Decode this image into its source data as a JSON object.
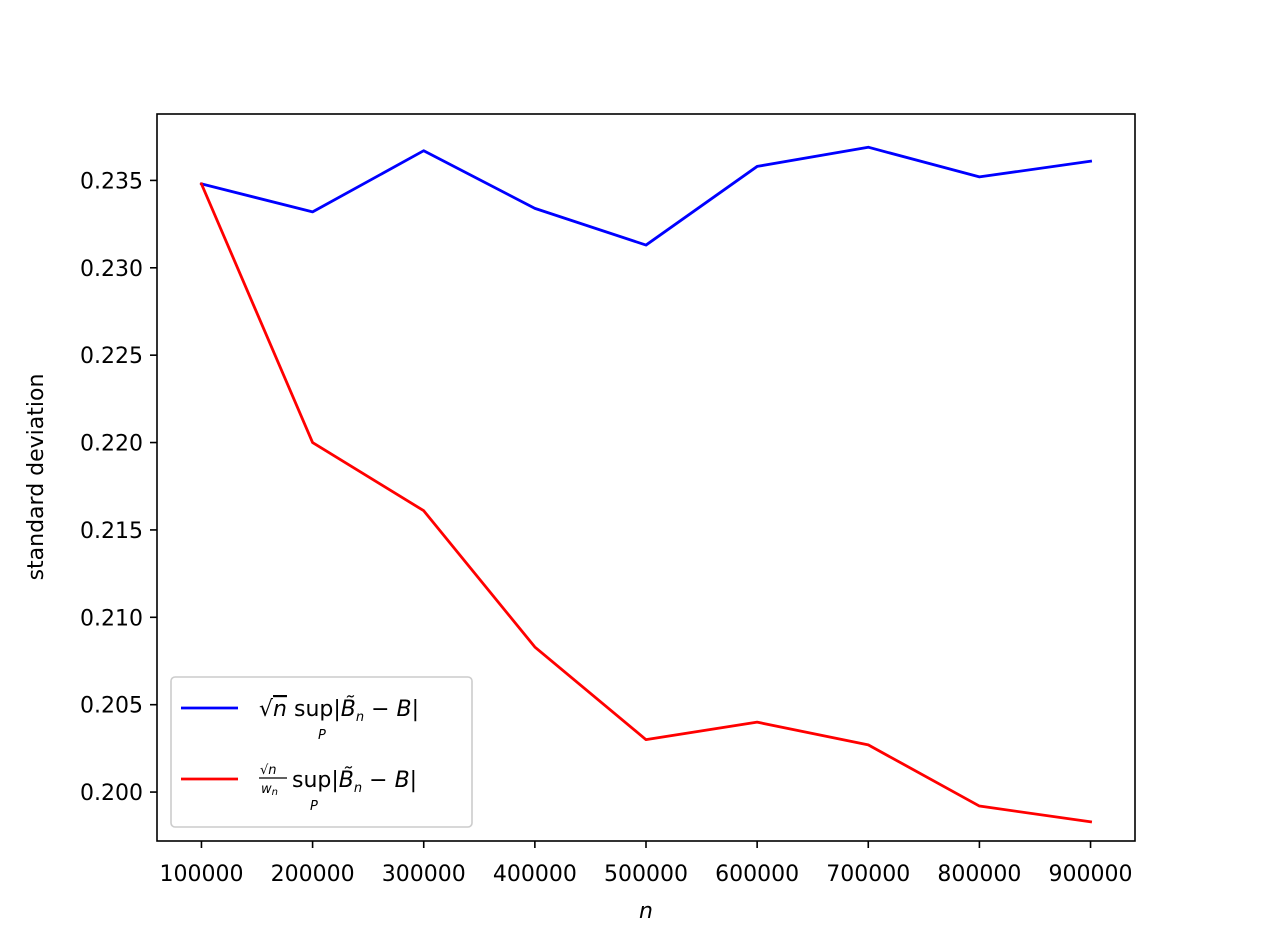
{
  "chart_data": {
    "type": "line",
    "title": "",
    "xlabel": "n",
    "ylabel": "standard deviation",
    "x": [
      100000,
      200000,
      300000,
      400000,
      500000,
      600000,
      700000,
      800000,
      900000
    ],
    "x_tick_labels": [
      "100000",
      "200000",
      "300000",
      "400000",
      "500000",
      "600000",
      "700000",
      "800000",
      "900000"
    ],
    "xlim": [
      60000,
      940000
    ],
    "ylim": [
      0.1972,
      0.2388
    ],
    "y_ticks": [
      0.2,
      0.205,
      0.21,
      0.215,
      0.22,
      0.225,
      0.23,
      0.235
    ],
    "y_tick_labels": [
      "0.200",
      "0.205",
      "0.210",
      "0.215",
      "0.220",
      "0.225",
      "0.230",
      "0.235"
    ],
    "grid": false,
    "legend_position": "lower-left",
    "series": [
      {
        "name": "√n sup_P |B̃_n − B|",
        "color": "#0000ff",
        "values": [
          0.2348,
          0.2332,
          0.2367,
          0.2334,
          0.2313,
          0.2358,
          0.2369,
          0.2352,
          0.2361
        ]
      },
      {
        "name": "(√n / w_n) sup_P |B̃_n − B|",
        "color": "#ff0000",
        "values": [
          0.2348,
          0.22,
          0.2161,
          0.2083,
          0.203,
          0.204,
          0.2027,
          0.1992,
          0.1983
        ]
      }
    ]
  }
}
